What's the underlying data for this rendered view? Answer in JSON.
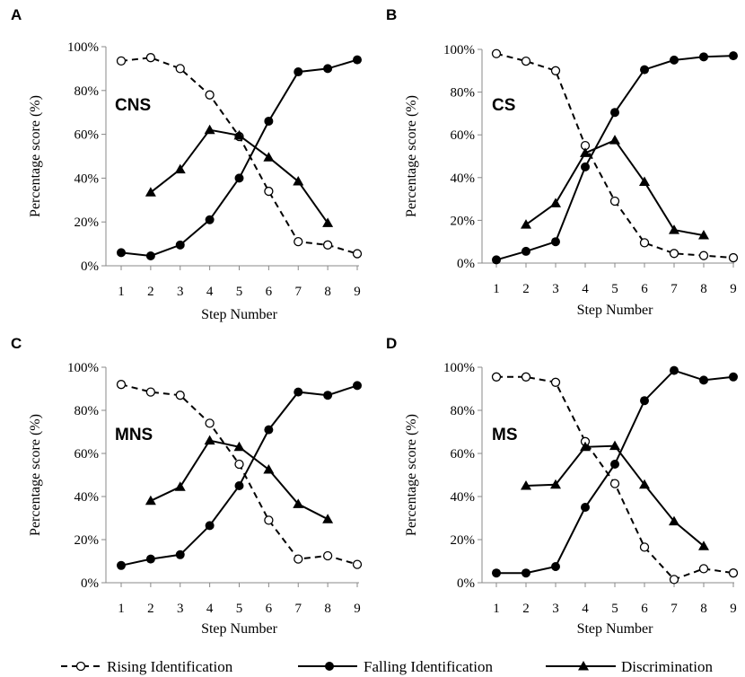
{
  "chart_data": [
    {
      "type": "line",
      "panel_letter": "A",
      "label": "CNS",
      "xlabel": "Step Number",
      "ylabel": "Percentage score (%)",
      "x": [
        1,
        2,
        3,
        4,
        5,
        6,
        7,
        8,
        9
      ],
      "ylim": [
        0,
        100
      ],
      "yticks": [
        "0%",
        "20%",
        "40%",
        "60%",
        "80%",
        "100%"
      ],
      "series": [
        {
          "name": "Rising Identification",
          "x": [
            1,
            2,
            3,
            4,
            5,
            6,
            7,
            8,
            9
          ],
          "values": [
            93.5,
            95,
            90,
            78,
            59,
            34,
            11,
            9.5,
            5.5
          ]
        },
        {
          "name": "Falling Identification",
          "x": [
            1,
            2,
            3,
            4,
            5,
            6,
            7,
            8,
            9
          ],
          "values": [
            6,
            4.5,
            9.5,
            21,
            40,
            66,
            88.5,
            90,
            94
          ]
        },
        {
          "name": "Discrimination",
          "x": [
            2,
            3,
            4,
            5,
            6,
            7,
            8
          ],
          "values": [
            33.5,
            44,
            62,
            59.5,
            49.5,
            38.5,
            19.5
          ]
        }
      ]
    },
    {
      "type": "line",
      "panel_letter": "B",
      "label": "CS",
      "xlabel": "Step Number",
      "ylabel": "Percentage score (%)",
      "x": [
        1,
        2,
        3,
        4,
        5,
        6,
        7,
        8,
        9
      ],
      "ylim": [
        0,
        100
      ],
      "yticks": [
        "0%",
        "20%",
        "40%",
        "60%",
        "80%",
        "100%"
      ],
      "series": [
        {
          "name": "Rising Identification",
          "x": [
            1,
            2,
            3,
            4,
            5,
            6,
            7,
            8,
            9
          ],
          "values": [
            98,
            94.5,
            90,
            55,
            29,
            9.5,
            4.5,
            3.5,
            2.5
          ]
        },
        {
          "name": "Falling Identification",
          "x": [
            1,
            2,
            3,
            4,
            5,
            6,
            7,
            8,
            9
          ],
          "values": [
            1.5,
            5.5,
            10,
            45,
            70.5,
            90.5,
            95,
            96.5,
            97
          ]
        },
        {
          "name": "Discrimination",
          "x": [
            2,
            3,
            4,
            5,
            6,
            7,
            8
          ],
          "values": [
            18,
            28,
            51.5,
            57.5,
            38,
            15.5,
            13
          ]
        }
      ]
    },
    {
      "type": "line",
      "panel_letter": "C",
      "label": "MNS",
      "xlabel": "Step Number",
      "ylabel": "Percentage score (%)",
      "x": [
        1,
        2,
        3,
        4,
        5,
        6,
        7,
        8,
        9
      ],
      "ylim": [
        0,
        100
      ],
      "yticks": [
        "0%",
        "20%",
        "40%",
        "60%",
        "80%",
        "100%"
      ],
      "series": [
        {
          "name": "Rising Identification",
          "x": [
            1,
            2,
            3,
            4,
            5,
            6,
            7,
            8,
            9
          ],
          "values": [
            92,
            88.5,
            87,
            74,
            55,
            29,
            11,
            12.5,
            8.5
          ]
        },
        {
          "name": "Falling Identification",
          "x": [
            1,
            2,
            3,
            4,
            5,
            6,
            7,
            8,
            9
          ],
          "values": [
            8,
            11,
            13,
            26.5,
            45,
            71,
            88.5,
            87,
            91.5
          ]
        },
        {
          "name": "Discrimination",
          "x": [
            2,
            3,
            4,
            5,
            6,
            7,
            8
          ],
          "values": [
            38,
            44.5,
            66,
            63,
            52.5,
            36.5,
            29.5
          ]
        }
      ]
    },
    {
      "type": "line",
      "panel_letter": "D",
      "label": "MS",
      "xlabel": "Step Number",
      "ylabel": "Percentage score (%)",
      "x": [
        1,
        2,
        3,
        4,
        5,
        6,
        7,
        8,
        9
      ],
      "ylim": [
        0,
        100
      ],
      "yticks": [
        "0%",
        "20%",
        "40%",
        "60%",
        "80%",
        "100%"
      ],
      "series": [
        {
          "name": "Rising Identification",
          "x": [
            1,
            2,
            3,
            4,
            5,
            6,
            7,
            8,
            9
          ],
          "values": [
            95.5,
            95.5,
            93,
            65.5,
            46,
            16.5,
            1.5,
            6.5,
            4.5
          ]
        },
        {
          "name": "Falling Identification",
          "x": [
            1,
            2,
            3,
            4,
            5,
            6,
            7,
            8,
            9
          ],
          "values": [
            4.5,
            4.5,
            7.5,
            35,
            55,
            84.5,
            98.5,
            94,
            95.5
          ]
        },
        {
          "name": "Discrimination",
          "x": [
            2,
            3,
            4,
            5,
            6,
            7,
            8
          ],
          "values": [
            45,
            45.5,
            63,
            63.5,
            45.5,
            28.5,
            17
          ]
        }
      ]
    }
  ],
  "legend": {
    "placement": "bottom",
    "items": [
      {
        "label": "Rising Identification",
        "marker": "open-circle",
        "line": "dashed"
      },
      {
        "label": "Falling Identification",
        "marker": "filled-circle",
        "line": "solid"
      },
      {
        "label": "Discrimination",
        "marker": "filled-triangle",
        "line": "solid"
      }
    ]
  }
}
